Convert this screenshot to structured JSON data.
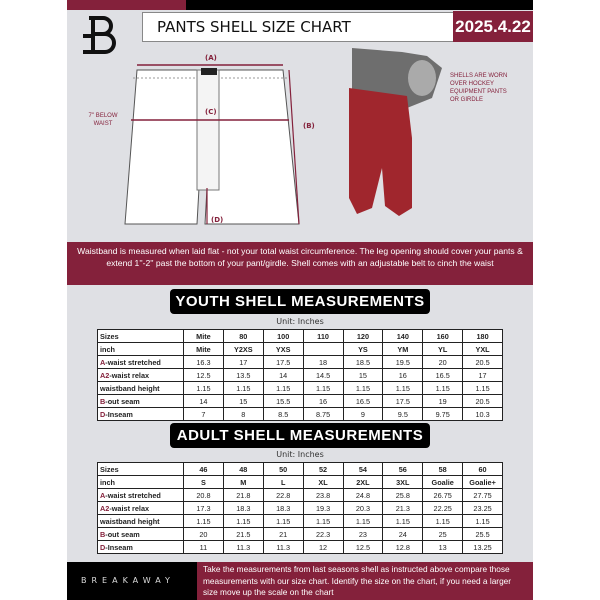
{
  "header": {
    "title": "PANTS SHELL SIZE CHART",
    "date": "2025.4.22"
  },
  "diagram": {
    "label_a": "(A)",
    "label_b": "(B)",
    "label_c": "(C)",
    "label_d": "(D)",
    "below_waist_note": "7'' BELOW WAIST",
    "shell_note": "SHELLS ARE WORN OVER HOCKEY EQUIPMENT PANTS OR GIRDLE"
  },
  "instructions": "Waistband is measured when laid flat - not your total waist circumference. The leg opening should cover your pants & extend 1''-2'' past the bottom of your pant/girdle. Shell comes with an adjustable belt to cinch the waist",
  "youth": {
    "heading": "YOUTH SHELL MEASUREMENTS",
    "unit": "Unit: Inches",
    "rows": [
      {
        "prefix": "",
        "label": "Sizes",
        "values": [
          "Mite",
          "80",
          "100",
          "110",
          "120",
          "140",
          "160",
          "180"
        ]
      },
      {
        "prefix": "",
        "label": "inch",
        "values": [
          "Mite",
          "Y2XS",
          "YXS",
          "",
          "YS",
          "YM",
          "YL",
          "YXL"
        ]
      },
      {
        "prefix": "A",
        "label": "-waist stretched",
        "values": [
          "16.3",
          "17",
          "17.5",
          "18",
          "18.5",
          "19.5",
          "20",
          "20.5"
        ]
      },
      {
        "prefix": "A2",
        "label": "-waist relax",
        "values": [
          "12.5",
          "13.5",
          "14",
          "14.5",
          "15",
          "16",
          "16.5",
          "17"
        ]
      },
      {
        "prefix": "",
        "label": "waistband height",
        "values": [
          "1.15",
          "1.15",
          "1.15",
          "1.15",
          "1.15",
          "1.15",
          "1.15",
          "1.15"
        ]
      },
      {
        "prefix": "B",
        "label": "-out seam",
        "values": [
          "14",
          "15",
          "15.5",
          "16",
          "16.5",
          "17.5",
          "19",
          "20.5"
        ]
      },
      {
        "prefix": "D",
        "label": "-Inseam",
        "values": [
          "7",
          "8",
          "8.5",
          "8.75",
          "9",
          "9.5",
          "9.75",
          "10.3"
        ]
      }
    ]
  },
  "adult": {
    "heading": "ADULT SHELL MEASUREMENTS",
    "unit": "Unit: Inches",
    "rows": [
      {
        "prefix": "",
        "label": "Sizes",
        "values": [
          "46",
          "48",
          "50",
          "52",
          "54",
          "56",
          "58",
          "60"
        ]
      },
      {
        "prefix": "",
        "label": "inch",
        "values": [
          "S",
          "M",
          "L",
          "XL",
          "2XL",
          "3XL",
          "Goalie",
          "Goalie+"
        ]
      },
      {
        "prefix": "A",
        "label": "-waist stretched",
        "values": [
          "20.8",
          "21.8",
          "22.8",
          "23.8",
          "24.8",
          "25.8",
          "26.75",
          "27.75"
        ]
      },
      {
        "prefix": "A2",
        "label": "-waist relax",
        "values": [
          "17.3",
          "18.3",
          "18.3",
          "19.3",
          "20.3",
          "21.3",
          "22.25",
          "23.25"
        ]
      },
      {
        "prefix": "",
        "label": "waistband height",
        "values": [
          "1.15",
          "1.15",
          "1.15",
          "1.15",
          "1.15",
          "1.15",
          "1.15",
          "1.15"
        ]
      },
      {
        "prefix": "B",
        "label": "-out seam",
        "values": [
          "20",
          "21.5",
          "21",
          "22.3",
          "23",
          "24",
          "25",
          "25.5"
        ]
      },
      {
        "prefix": "D",
        "label": "-Inseam",
        "values": [
          "11",
          "11.3",
          "11.3",
          "12",
          "12.5",
          "12.8",
          "13",
          "13.25"
        ]
      }
    ]
  },
  "footer": {
    "brand": "BREAKAWAY",
    "message": "Take the measurements from last seasons shell as instructed above compare those measurements  with our size chart. Identify the size on the chart, if you need a larger size move up the scale on the chart"
  },
  "colors": {
    "accent": "#84213b",
    "dark": "#000000",
    "background": "#dfe0e4"
  }
}
